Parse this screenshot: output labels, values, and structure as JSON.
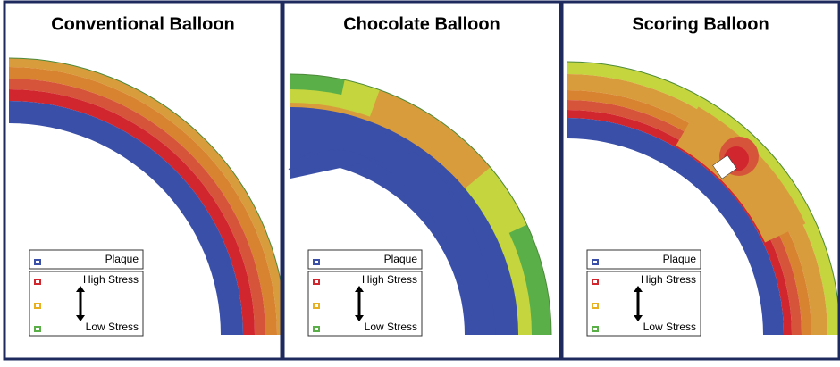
{
  "panels": [
    {
      "title": "Conventional Balloon",
      "legend": {
        "plaque": "Plaque",
        "high": "High Stress",
        "low": "Low Stress"
      }
    },
    {
      "title": "Chocolate Balloon",
      "legend": {
        "plaque": "Plaque",
        "high": "High Stress",
        "low": "Low Stress"
      }
    },
    {
      "title": "Scoring Balloon",
      "legend": {
        "plaque": "Plaque",
        "high": "High Stress",
        "low": "Low Stress"
      }
    }
  ]
}
